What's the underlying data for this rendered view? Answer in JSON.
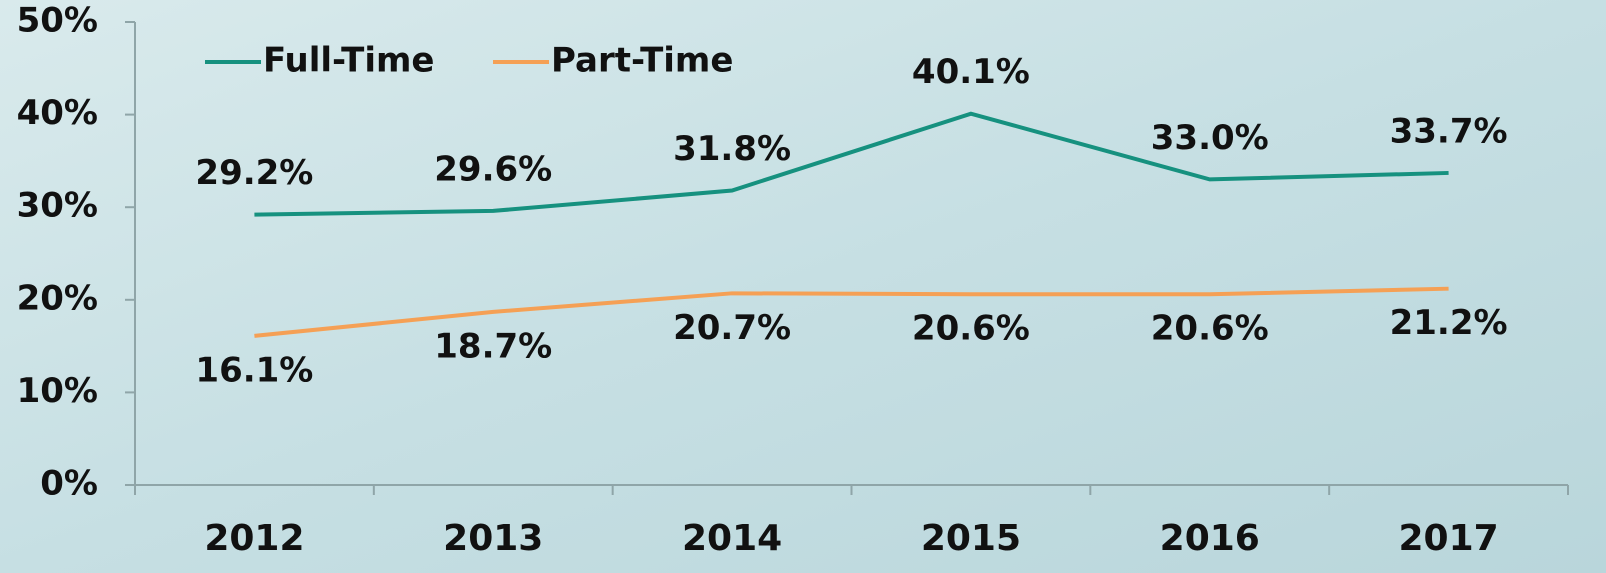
{
  "chart_data": {
    "type": "line",
    "categories": [
      "2012",
      "2013",
      "2014",
      "2015",
      "2016",
      "2017"
    ],
    "series": [
      {
        "name": "Full-Time",
        "color": "#16917f",
        "values": [
          29.2,
          29.6,
          31.8,
          40.1,
          33.0,
          33.7
        ],
        "value_labels": [
          "29.2%",
          "29.6%",
          "31.8%",
          "40.1%",
          "33.0%",
          "33.7%"
        ]
      },
      {
        "name": "Part-Time",
        "color": "#f5a055",
        "values": [
          16.1,
          18.7,
          20.7,
          20.6,
          20.6,
          21.2
        ],
        "value_labels": [
          "16.1%",
          "18.7%",
          "20.7%",
          "20.6%",
          "20.6%",
          "21.2%"
        ]
      }
    ],
    "ylim": [
      0,
      50
    ],
    "yticks": [
      {
        "value": 0,
        "label": "0%"
      },
      {
        "value": 10,
        "label": "10%"
      },
      {
        "value": 20,
        "label": "20%"
      },
      {
        "value": 30,
        "label": "30%"
      },
      {
        "value": 40,
        "label": "40%"
      },
      {
        "value": 50,
        "label": "50%"
      }
    ],
    "grid": false,
    "legend": "top-left"
  }
}
